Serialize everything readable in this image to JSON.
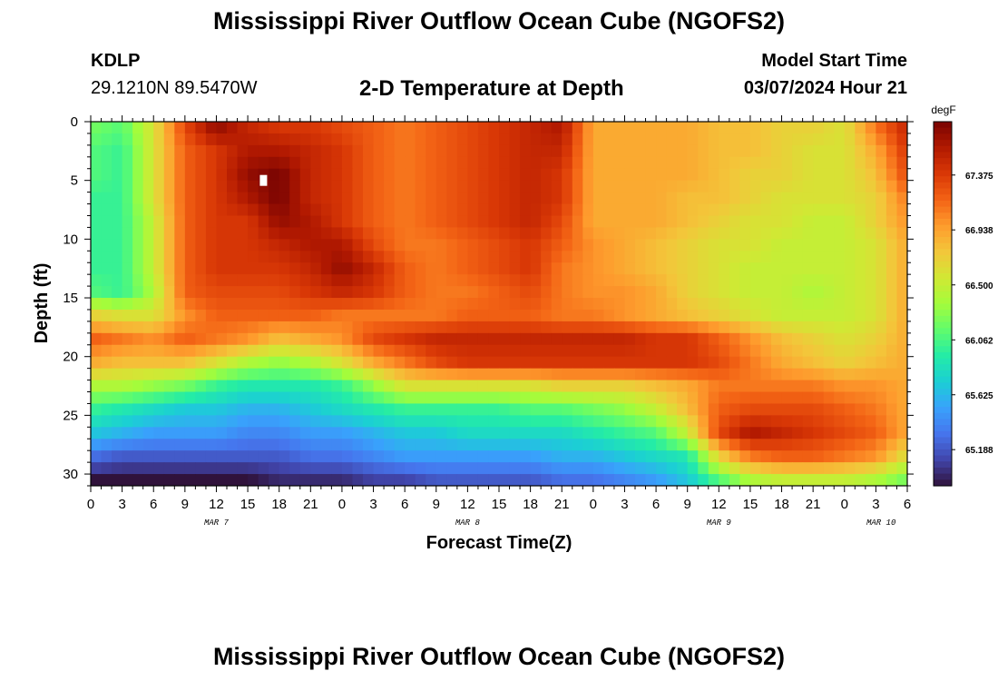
{
  "header": {
    "title": "Mississippi River Outflow Ocean Cube (NGOFS2)",
    "station_id": "KDLP",
    "station_coords": "29.1210N  89.5470W",
    "subtitle": "2-D Temperature at Depth",
    "model_label": "Model Start Time",
    "model_time": "03/07/2024 Hour 21"
  },
  "footer": {
    "title": "Mississippi River Outflow Ocean Cube (NGOFS2)"
  },
  "chart_data": {
    "type": "heatmap",
    "title": "2-D Temperature at Depth",
    "xlabel": "Forecast Time(Z)",
    "ylabel": "Depth (ft)",
    "x_range_hours": [
      0,
      78
    ],
    "x_ticks": [
      {
        "hour": 0,
        "label": "0"
      },
      {
        "hour": 3,
        "label": "3"
      },
      {
        "hour": 6,
        "label": "6"
      },
      {
        "hour": 9,
        "label": "9"
      },
      {
        "hour": 12,
        "label": "12"
      },
      {
        "hour": 15,
        "label": "15"
      },
      {
        "hour": 18,
        "label": "18"
      },
      {
        "hour": 21,
        "label": "21"
      },
      {
        "hour": 24,
        "label": "0"
      },
      {
        "hour": 27,
        "label": "3"
      },
      {
        "hour": 30,
        "label": "6"
      },
      {
        "hour": 33,
        "label": "9"
      },
      {
        "hour": 36,
        "label": "12"
      },
      {
        "hour": 39,
        "label": "15"
      },
      {
        "hour": 42,
        "label": "18"
      },
      {
        "hour": 45,
        "label": "21"
      },
      {
        "hour": 48,
        "label": "0"
      },
      {
        "hour": 51,
        "label": "3"
      },
      {
        "hour": 54,
        "label": "6"
      },
      {
        "hour": 57,
        "label": "9"
      },
      {
        "hour": 60,
        "label": "12"
      },
      {
        "hour": 63,
        "label": "15"
      },
      {
        "hour": 66,
        "label": "18"
      },
      {
        "hour": 69,
        "label": "21"
      },
      {
        "hour": 72,
        "label": "0"
      },
      {
        "hour": 75,
        "label": "3"
      },
      {
        "hour": 78,
        "label": "6"
      }
    ],
    "day_labels": [
      {
        "hour": 12,
        "label": "MAR 7"
      },
      {
        "hour": 36,
        "label": "MAR 8"
      },
      {
        "hour": 60,
        "label": "MAR 9"
      },
      {
        "hour": 75.5,
        "label": "MAR 10"
      }
    ],
    "y_range_ft": [
      0,
      31
    ],
    "y_ticks": [
      0,
      5,
      10,
      15,
      20,
      25,
      30
    ],
    "colorbar": {
      "unit": "degF",
      "range": [
        64.9,
        67.8
      ],
      "ticks": [
        "67.375",
        "66.938",
        "66.500",
        "66.062",
        "65.625",
        "65.188"
      ],
      "colors": [
        "#30123b",
        "#4145ab",
        "#4675ed",
        "#39a2fc",
        "#1bcfd4",
        "#24eca6",
        "#61fc6c",
        "#a4fc3b",
        "#d1e834",
        "#f3c63a",
        "#fe9b2d",
        "#f36315",
        "#d93806",
        "#b11901",
        "#7a0402"
      ]
    },
    "field": {
      "description": "temperature (degF) by depth row (0-31 ft) and forecast hour column (0-78)",
      "depth_rows_ft": [
        0.5,
        2.5,
        4.5,
        6.5,
        8.5,
        10.5,
        12.5,
        14.5,
        16.5,
        18.5,
        20.5,
        22.5,
        24.5,
        26.5,
        28.5,
        30.5
      ],
      "hour_cols": [
        0,
        3,
        6,
        9,
        12,
        15,
        18,
        21,
        24,
        27,
        30,
        33,
        36,
        39,
        42,
        45,
        48,
        51,
        54,
        57,
        60,
        63,
        66,
        69,
        72,
        75,
        78
      ],
      "values": [
        [
          66.2,
          66.1,
          66.6,
          67.3,
          67.7,
          67.5,
          67.4,
          67.4,
          67.3,
          67.2,
          67.1,
          67.2,
          67.3,
          67.4,
          67.5,
          67.6,
          66.9,
          66.9,
          66.9,
          66.9,
          66.8,
          66.8,
          66.7,
          66.7,
          66.6,
          67.1,
          67.5
        ],
        [
          66.1,
          66.0,
          66.6,
          67.2,
          67.4,
          67.6,
          67.6,
          67.5,
          67.4,
          67.2,
          67.1,
          67.2,
          67.3,
          67.4,
          67.5,
          67.5,
          66.9,
          66.9,
          66.9,
          66.9,
          66.8,
          66.8,
          66.7,
          66.6,
          66.6,
          66.9,
          67.4
        ],
        [
          66.1,
          66.0,
          66.6,
          67.2,
          67.4,
          67.7,
          67.8,
          67.5,
          67.4,
          67.2,
          67.1,
          67.2,
          67.3,
          67.4,
          67.5,
          67.4,
          66.9,
          66.9,
          66.9,
          66.9,
          66.8,
          66.7,
          66.7,
          66.6,
          66.6,
          66.8,
          67.3
        ],
        [
          66.0,
          66.0,
          66.6,
          67.2,
          67.4,
          67.6,
          67.8,
          67.5,
          67.4,
          67.2,
          67.1,
          67.2,
          67.3,
          67.4,
          67.5,
          67.4,
          66.9,
          66.9,
          66.9,
          66.8,
          66.8,
          66.7,
          66.6,
          66.6,
          66.6,
          66.7,
          67.1
        ],
        [
          66.0,
          66.0,
          66.5,
          67.2,
          67.4,
          67.4,
          67.7,
          67.6,
          67.4,
          67.2,
          67.1,
          67.2,
          67.3,
          67.4,
          67.5,
          67.3,
          66.9,
          66.9,
          66.9,
          66.8,
          66.7,
          66.6,
          66.6,
          66.5,
          66.5,
          66.7,
          67.0
        ],
        [
          66.0,
          66.0,
          66.5,
          67.2,
          67.4,
          67.4,
          67.5,
          67.6,
          67.6,
          67.3,
          67.1,
          67.1,
          67.2,
          67.3,
          67.4,
          67.2,
          67.0,
          66.9,
          66.8,
          66.7,
          66.6,
          66.6,
          66.5,
          66.5,
          66.5,
          66.6,
          66.9
        ],
        [
          66.0,
          66.0,
          66.5,
          67.2,
          67.4,
          67.4,
          67.4,
          67.5,
          67.7,
          67.5,
          67.2,
          67.1,
          67.2,
          67.3,
          67.4,
          67.1,
          67.0,
          66.9,
          66.8,
          66.7,
          66.6,
          66.5,
          66.5,
          66.5,
          66.5,
          66.6,
          66.9
        ],
        [
          66.1,
          66.0,
          66.4,
          67.2,
          67.3,
          67.3,
          67.3,
          67.4,
          67.5,
          67.4,
          67.2,
          67.1,
          67.1,
          67.2,
          67.3,
          67.1,
          67.0,
          67.0,
          66.9,
          66.7,
          66.6,
          66.5,
          66.5,
          66.4,
          66.5,
          66.6,
          66.9
        ],
        [
          66.7,
          66.6,
          66.6,
          67.0,
          67.2,
          67.2,
          67.2,
          67.2,
          67.1,
          67.1,
          67.1,
          67.1,
          67.2,
          67.2,
          67.2,
          67.1,
          67.1,
          67.0,
          66.9,
          66.8,
          66.7,
          66.6,
          66.5,
          66.5,
          66.5,
          66.6,
          66.9
        ],
        [
          67.2,
          67.1,
          67.0,
          67.2,
          67.1,
          67.0,
          66.8,
          66.9,
          67.0,
          67.3,
          67.4,
          67.5,
          67.5,
          67.5,
          67.5,
          67.5,
          67.5,
          67.5,
          67.4,
          67.4,
          67.2,
          67.0,
          66.8,
          66.7,
          66.6,
          66.7,
          66.9
        ],
        [
          66.9,
          66.8,
          66.8,
          66.8,
          66.6,
          66.4,
          66.3,
          66.4,
          66.6,
          66.9,
          67.1,
          67.3,
          67.4,
          67.4,
          67.4,
          67.4,
          67.4,
          67.4,
          67.4,
          67.4,
          67.3,
          67.1,
          66.9,
          66.8,
          66.7,
          66.8,
          66.9
        ],
        [
          66.4,
          66.4,
          66.3,
          66.2,
          66.0,
          65.9,
          65.9,
          65.9,
          66.0,
          66.3,
          66.6,
          66.6,
          66.6,
          66.6,
          66.6,
          66.7,
          66.7,
          66.7,
          66.8,
          66.9,
          67.1,
          67.1,
          67.1,
          67.1,
          67.0,
          67.0,
          66.9
        ],
        [
          66.0,
          65.9,
          65.8,
          65.7,
          65.7,
          65.6,
          65.6,
          65.7,
          65.8,
          65.9,
          66.0,
          66.0,
          66.0,
          66.0,
          66.1,
          66.1,
          66.2,
          66.3,
          66.5,
          66.8,
          67.2,
          67.3,
          67.3,
          67.3,
          67.2,
          67.1,
          66.9
        ],
        [
          65.7,
          65.6,
          65.5,
          65.5,
          65.5,
          65.4,
          65.4,
          65.5,
          65.5,
          65.6,
          65.7,
          65.7,
          65.8,
          65.8,
          65.8,
          65.8,
          65.9,
          66.0,
          66.1,
          66.5,
          67.3,
          67.6,
          67.5,
          67.4,
          67.3,
          67.2,
          66.9
        ],
        [
          65.3,
          65.2,
          65.2,
          65.2,
          65.2,
          65.2,
          65.2,
          65.3,
          65.3,
          65.4,
          65.5,
          65.5,
          65.5,
          65.5,
          65.5,
          65.6,
          65.6,
          65.7,
          65.8,
          65.9,
          66.7,
          67.1,
          67.2,
          67.2,
          67.1,
          67.0,
          66.6
        ],
        [
          64.9,
          64.9,
          64.9,
          64.9,
          64.9,
          64.9,
          65.0,
          65.0,
          65.0,
          65.1,
          65.1,
          65.2,
          65.2,
          65.2,
          65.2,
          65.3,
          65.3,
          65.4,
          65.5,
          65.7,
          66.1,
          66.4,
          66.5,
          66.5,
          66.5,
          66.4,
          66.2
        ]
      ]
    },
    "marker": {
      "hour": 16.5,
      "depth_ft": 5,
      "color": "#ffffff"
    }
  }
}
